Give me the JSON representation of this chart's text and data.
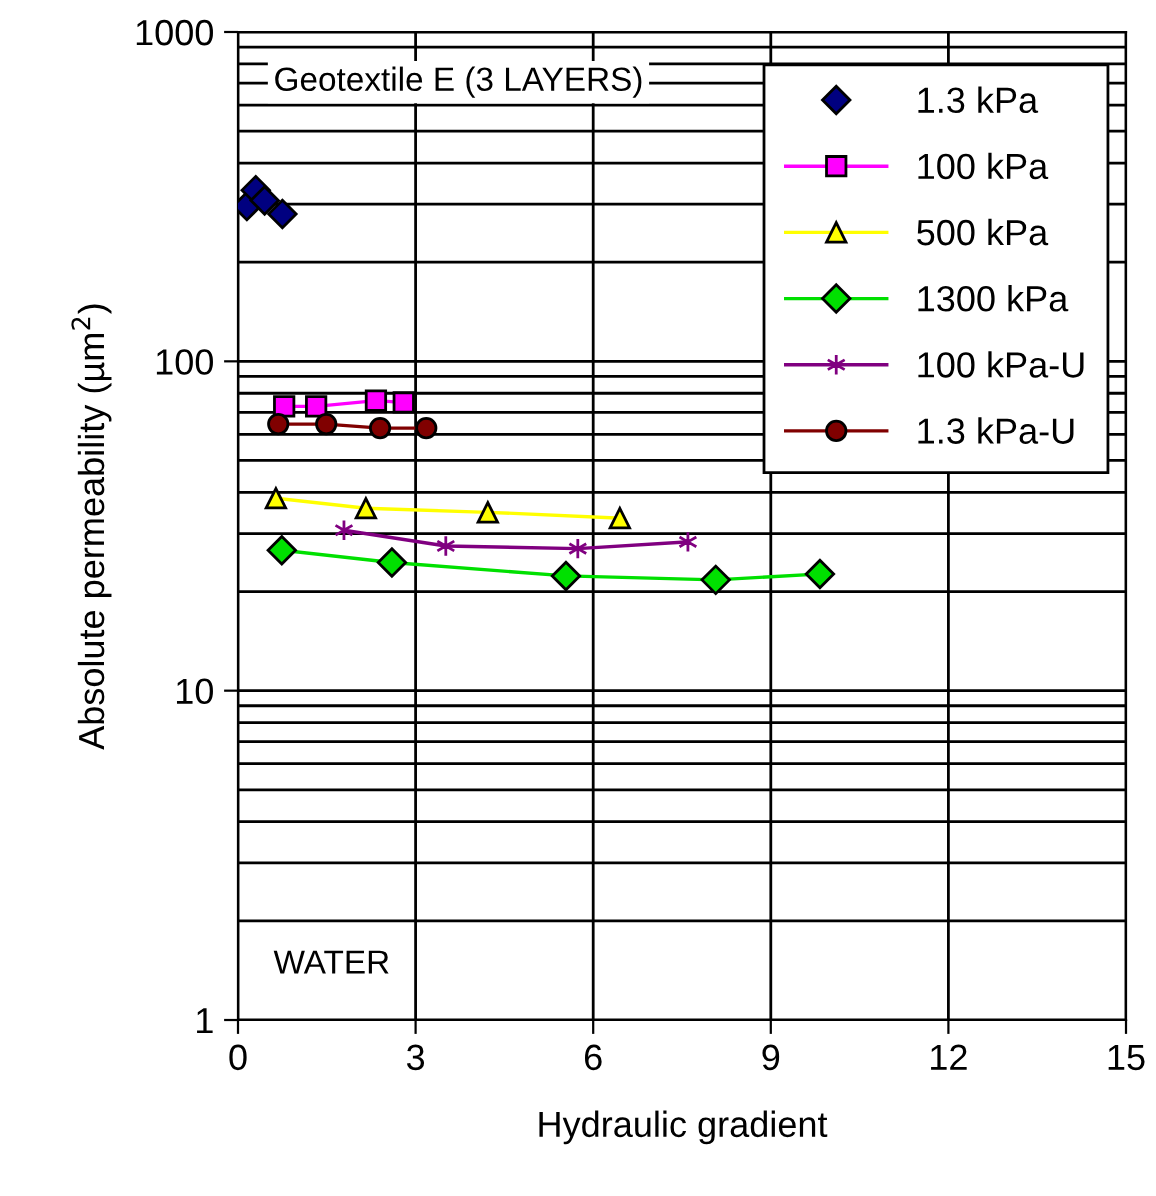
{
  "chart_data": {
    "type": "line",
    "xlabel": "Hydraulic gradient",
    "ylabel": "Absolute permeability (µm$^{2}$)",
    "log": "y",
    "xlim": [
      0,
      15
    ],
    "xticks": [
      0,
      3,
      6,
      9,
      12,
      15
    ],
    "ylim": [
      1,
      1000
    ],
    "yticks": [
      1,
      10,
      100,
      1000
    ],
    "grid": true,
    "legend": "top right",
    "line_style": "solid",
    "annotations": [
      "Geotextile E (3 LAYERS)",
      "WATER"
    ],
    "series": [
      {
        "name": "1.3 kPa",
        "type": "scatter",
        "color": "#000080",
        "marker": "diamond",
        "x": [
          0.15,
          0.3,
          0.45,
          0.75
        ],
        "values": [
          296,
          331,
          308,
          280
        ]
      },
      {
        "name": "100 kPa",
        "color": "#ff00ff",
        "marker": "square",
        "x": [
          0.78,
          1.32,
          2.33,
          2.8
        ],
        "values": [
          73,
          73,
          76,
          75
        ]
      },
      {
        "name": "500 kPa",
        "color": "#ffff00",
        "marker": "triangle",
        "x": [
          0.64,
          2.16,
          4.22,
          6.45
        ],
        "values": [
          38.4,
          35.8,
          34.8,
          33.4
        ]
      },
      {
        "name": "1300 kPa",
        "color": "#00e000",
        "marker": "diamond",
        "x": [
          0.74,
          2.6,
          5.54,
          8.07,
          9.83
        ],
        "values": [
          26.7,
          24.5,
          22.3,
          21.7,
          22.6
        ]
      },
      {
        "name": "100 kPa-U",
        "color": "#800080",
        "marker": "cross",
        "x": [
          1.79,
          3.51,
          5.74,
          7.6
        ],
        "values": [
          30.7,
          27.5,
          27,
          28.3
        ]
      },
      {
        "name": "1.3 kPa-U",
        "color": "#800000",
        "marker": "circle",
        "x": [
          0.68,
          1.49,
          2.4,
          3.18
        ],
        "values": [
          64.5,
          64.5,
          62.7,
          62.7
        ]
      }
    ]
  }
}
